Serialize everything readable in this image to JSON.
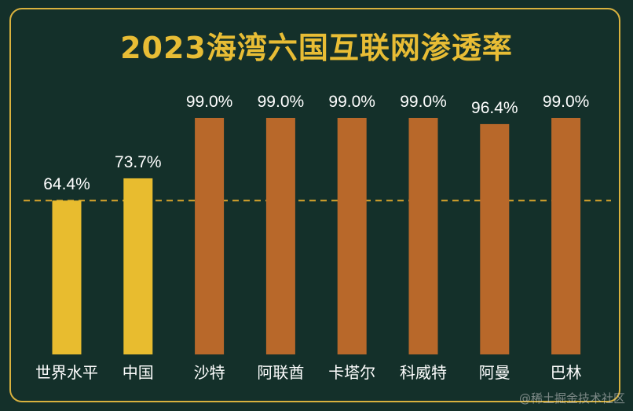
{
  "chart_data": {
    "type": "bar",
    "title": "2023海湾六国互联网渗透率",
    "categories": [
      "世界水平",
      "中国",
      "沙特",
      "阿联酋",
      "卡塔尔",
      "科威特",
      "阿曼",
      "巴林"
    ],
    "values": [
      64.4,
      73.7,
      99.0,
      99.0,
      99.0,
      99.0,
      96.4,
      99.0
    ],
    "data_labels": [
      "64.4%",
      "73.7%",
      "99.0%",
      "99.0%",
      "99.0%",
      "99.0%",
      "96.4%",
      "99.0%"
    ],
    "bar_colors": [
      "#e8bc2f",
      "#e8bc2f",
      "#b8682a",
      "#b8682a",
      "#b8682a",
      "#b8682a",
      "#b8682a",
      "#b8682a"
    ],
    "reference_line": {
      "value": 64.4,
      "style": "dashed",
      "color": "#d9a52c"
    },
    "ylim": [
      0,
      100
    ],
    "xlabel": "",
    "ylabel": "",
    "grid": false,
    "legend": "none"
  },
  "colors": {
    "background": "#14302a",
    "border": "#d9b23e",
    "title": "#e8bd35",
    "text": "#ffffff"
  },
  "watermark": "@稀土掘金技术社区"
}
